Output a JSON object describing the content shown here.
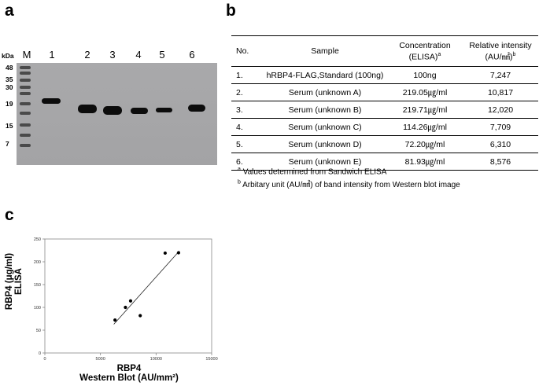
{
  "panel_a": {
    "letter": "a",
    "kda_label": "kDa",
    "lane_labels": [
      "M",
      "1",
      "2",
      "3",
      "4",
      "5",
      "6"
    ],
    "marker_sizes": [
      "48",
      "35",
      "30",
      "19",
      "15",
      "7"
    ]
  },
  "panel_b": {
    "letter": "b",
    "headers": {
      "no": "No.",
      "sample": "Sample",
      "concentration_line1": "Concentration",
      "concentration_line2": "(ELISA)",
      "concentration_sup": "a",
      "intensity_line1": "Relative intensity",
      "intensity_line2": "(AU/㎟)",
      "intensity_sup": "b"
    },
    "rows": [
      {
        "no": "1.",
        "sample": "hRBP4-FLAG,Standard (100ng)",
        "concentration": "100ng",
        "intensity": "7,247"
      },
      {
        "no": "2.",
        "sample": "Serum (unknown A)",
        "concentration": "219.05㎍/ml",
        "intensity": "10,817"
      },
      {
        "no": "3.",
        "sample": "Serum (unknown B)",
        "concentration": "219.71㎍/ml",
        "intensity": "12,020"
      },
      {
        "no": "4.",
        "sample": "Serum (unknown C)",
        "concentration": "114.26㎍/ml",
        "intensity": "7,709"
      },
      {
        "no": "5.",
        "sample": "Serum (unknown D)",
        "concentration": "72.20㎍/ml",
        "intensity": "6,310"
      },
      {
        "no": "6.",
        "sample": "Serum (unknown E)",
        "concentration": "81.93㎍/ml",
        "intensity": "8,576"
      }
    ],
    "footnote_a_sup": "a",
    "footnote_a": "Values determined from Sandwich ELISA",
    "footnote_b_sup": "b",
    "footnote_b": "Arbitary unit (AU/㎟) of band intensity from Western blot image"
  },
  "panel_c": {
    "letter": "c",
    "ylabel_line1": "RBP4 (μg/ml)",
    "ylabel_line2": "ELISA",
    "xlabel_line1": "RBP4",
    "xlabel_line2": "Western Blot (AU/mm²)"
  },
  "chart_data": {
    "type": "scatter",
    "title": "",
    "xlabel": "RBP4 Western Blot (AU/mm²)",
    "ylabel": "RBP4 (μg/ml) ELISA",
    "xlim": [
      0,
      15000
    ],
    "ylim": [
      0,
      250
    ],
    "xticks": [
      0,
      5000,
      10000,
      15000
    ],
    "yticks": [
      0,
      50,
      100,
      150,
      200,
      250
    ],
    "grid": false,
    "points": {
      "x": [
        6310,
        7247,
        7709,
        8576,
        10817,
        12020
      ],
      "y": [
        72.2,
        100,
        114.26,
        81.93,
        219.05,
        219.71
      ]
    },
    "trendline": {
      "x": [
        6200,
        12100
      ],
      "y": [
        63,
        224
      ]
    }
  }
}
